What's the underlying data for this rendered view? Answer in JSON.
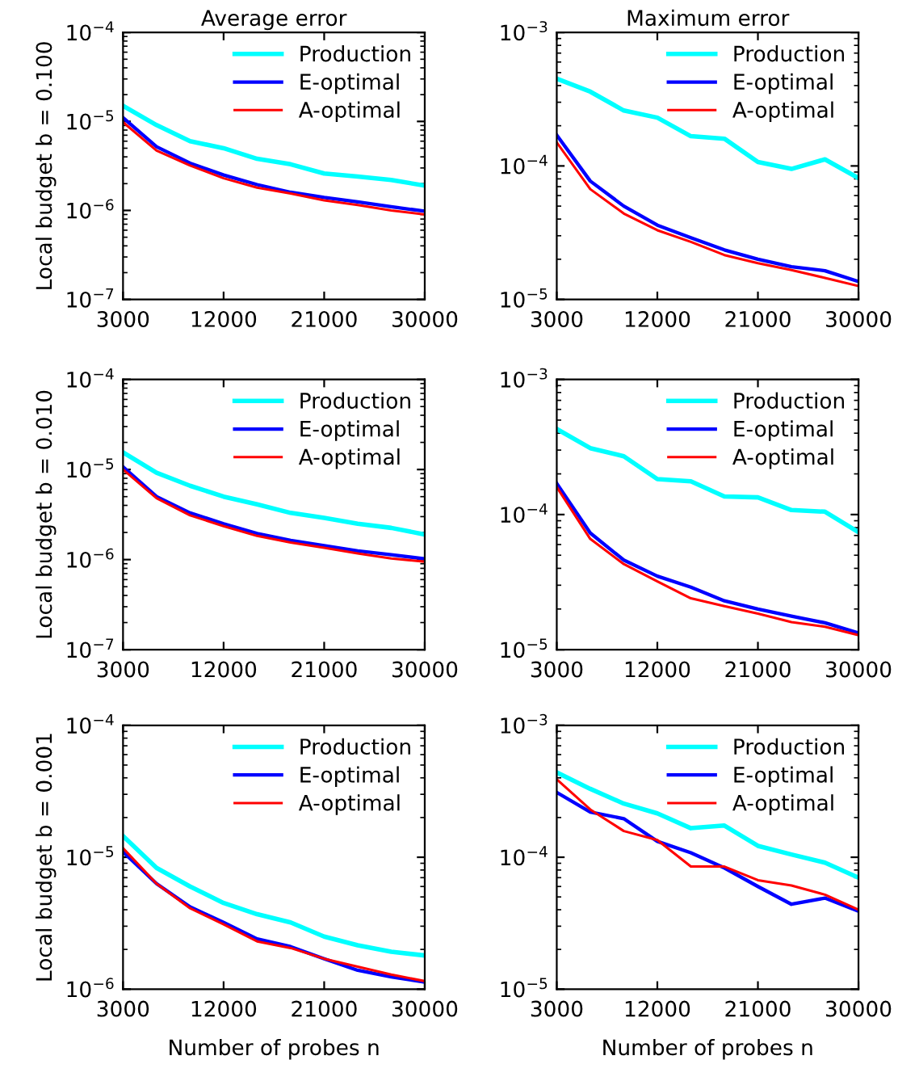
{
  "chart_data": [
    {
      "type": "line",
      "title": "Average error",
      "ylabel": "Local budget b = 0.100",
      "x": [
        3000,
        6000,
        9000,
        12000,
        15000,
        18000,
        21000,
        24000,
        27000,
        30000
      ],
      "log": "y",
      "xlim": [
        3000,
        30000
      ],
      "xticks": [
        3000,
        12000,
        21000,
        30000
      ],
      "ylim": [
        1e-07,
        0.0001
      ],
      "yticks": [
        {
          "value": 1e-07,
          "label": "10$^{−7}$"
        },
        {
          "value": 1e-06,
          "label": "10$^{−6}$"
        },
        {
          "value": 1e-05,
          "label": "10$^{−5}$"
        },
        {
          "value": 0.0001,
          "label": "10$^{−4}$"
        }
      ],
      "legend": "top right",
      "grid": false,
      "series": [
        {
          "name": "Production",
          "color": "#00ffff",
          "values": [
            1.5e-05,
            9.1e-06,
            6e-06,
            5e-06,
            3.8e-06,
            3.3e-06,
            2.6e-06,
            2.4e-06,
            2.2e-06,
            1.9e-06
          ]
        },
        {
          "name": "E-optimal",
          "color": "#0000ff",
          "values": [
            1.1e-05,
            5.2e-06,
            3.4e-06,
            2.5e-06,
            1.95e-06,
            1.6e-06,
            1.4e-06,
            1.25e-06,
            1.1e-06,
            9.8e-07
          ]
        },
        {
          "name": "A-optimal",
          "color": "#ff0000",
          "values": [
            9.8e-06,
            4.7e-06,
            3.2e-06,
            2.3e-06,
            1.8e-06,
            1.55e-06,
            1.3e-06,
            1.15e-06,
            1e-06,
            9e-07
          ]
        }
      ]
    },
    {
      "type": "line",
      "title": "Maximum error",
      "x": [
        3000,
        6000,
        9000,
        12000,
        15000,
        18000,
        21000,
        24000,
        27000,
        30000
      ],
      "log": "y",
      "xlim": [
        3000,
        30000
      ],
      "xticks": [
        3000,
        12000,
        21000,
        30000
      ],
      "ylim": [
        1e-05,
        0.001
      ],
      "yticks": [
        {
          "value": 1e-05,
          "label": "10$^{−5}$"
        },
        {
          "value": 0.0001,
          "label": "10$^{−4}$"
        },
        {
          "value": 0.001,
          "label": "10$^{−3}$"
        }
      ],
      "legend": "top right",
      "grid": false,
      "series": [
        {
          "name": "Production",
          "color": "#00ffff",
          "values": [
            0.00045,
            0.00036,
            0.00026,
            0.00023,
            0.000167,
            0.00016,
            0.000107,
            9.5e-05,
            0.000112,
            8.1e-05
          ]
        },
        {
          "name": "E-optimal",
          "color": "#0000ff",
          "values": [
            0.00017,
            7.7e-05,
            5e-05,
            3.6e-05,
            2.9e-05,
            2.35e-05,
            2e-05,
            1.76e-05,
            1.64e-05,
            1.36e-05
          ]
        },
        {
          "name": "A-optimal",
          "color": "#ff0000",
          "values": [
            0.00015,
            6.7e-05,
            4.4e-05,
            3.3e-05,
            2.7e-05,
            2.15e-05,
            1.87e-05,
            1.66e-05,
            1.45e-05,
            1.26e-05
          ]
        }
      ]
    },
    {
      "type": "line",
      "ylabel": "Local budget b = 0.010",
      "x": [
        3000,
        6000,
        9000,
        12000,
        15000,
        18000,
        21000,
        24000,
        27000,
        30000
      ],
      "log": "y",
      "xlim": [
        3000,
        30000
      ],
      "xticks": [
        3000,
        12000,
        21000,
        30000
      ],
      "ylim": [
        1e-07,
        0.0001
      ],
      "yticks": [
        {
          "value": 1e-07,
          "label": "10$^{−7}$"
        },
        {
          "value": 1e-06,
          "label": "10$^{−6}$"
        },
        {
          "value": 1e-05,
          "label": "10$^{−5}$"
        },
        {
          "value": 0.0001,
          "label": "10$^{−4}$"
        }
      ],
      "legend": "top right",
      "grid": false,
      "series": [
        {
          "name": "Production",
          "color": "#00ffff",
          "values": [
            1.55e-05,
            9.2e-06,
            6.6e-06,
            5e-06,
            4.1e-06,
            3.3e-06,
            2.9e-06,
            2.5e-06,
            2.25e-06,
            1.9e-06
          ]
        },
        {
          "name": "E-optimal",
          "color": "#0000ff",
          "values": [
            1.07e-05,
            5e-06,
            3.3e-06,
            2.5e-06,
            1.95e-06,
            1.63e-06,
            1.43e-06,
            1.25e-06,
            1.13e-06,
            1.02e-06
          ]
        },
        {
          "name": "A-optimal",
          "color": "#ff0000",
          "values": [
            1e-05,
            4.8e-06,
            3.1e-06,
            2.35e-06,
            1.83e-06,
            1.55e-06,
            1.35e-06,
            1.17e-06,
            1.03e-06,
            9.5e-07
          ]
        }
      ]
    },
    {
      "type": "line",
      "x": [
        3000,
        6000,
        9000,
        12000,
        15000,
        18000,
        21000,
        24000,
        27000,
        30000
      ],
      "log": "y",
      "xlim": [
        3000,
        30000
      ],
      "xticks": [
        3000,
        12000,
        21000,
        30000
      ],
      "ylim": [
        1e-05,
        0.001
      ],
      "yticks": [
        {
          "value": 1e-05,
          "label": "10$^{−5}$"
        },
        {
          "value": 0.0001,
          "label": "10$^{−4}$"
        },
        {
          "value": 0.001,
          "label": "10$^{−3}$"
        }
      ],
      "legend": "top right",
      "grid": false,
      "series": [
        {
          "name": "Production",
          "color": "#00ffff",
          "values": [
            0.00043,
            0.00031,
            0.00027,
            0.000183,
            0.000176,
            0.000136,
            0.000134,
            0.000108,
            0.000105,
            7.4e-05
          ]
        },
        {
          "name": "E-optimal",
          "color": "#0000ff",
          "values": [
            0.00017,
            7.3e-05,
            4.6e-05,
            3.5e-05,
            2.9e-05,
            2.3e-05,
            2e-05,
            1.77e-05,
            1.58e-05,
            1.33e-05
          ]
        },
        {
          "name": "A-optimal",
          "color": "#ff0000",
          "values": [
            0.00016,
            6.6e-05,
            4.3e-05,
            3.2e-05,
            2.4e-05,
            2.1e-05,
            1.85e-05,
            1.6e-05,
            1.48e-05,
            1.28e-05
          ]
        }
      ]
    },
    {
      "type": "line",
      "ylabel": "Local budget b = 0.001",
      "xlabel": "Number of probes n",
      "x": [
        3000,
        6000,
        9000,
        12000,
        15000,
        18000,
        21000,
        24000,
        27000,
        30000
      ],
      "log": "y",
      "xlim": [
        3000,
        30000
      ],
      "xticks": [
        3000,
        12000,
        21000,
        30000
      ],
      "ylim": [
        1e-06,
        0.0001
      ],
      "yticks": [
        {
          "value": 1e-06,
          "label": "10$^{−6}$"
        },
        {
          "value": 1e-05,
          "label": "10$^{−5}$"
        },
        {
          "value": 0.0001,
          "label": "10$^{−4}$"
        }
      ],
      "legend": "top right",
      "grid": false,
      "series": [
        {
          "name": "Production",
          "color": "#00ffff",
          "values": [
            1.45e-05,
            8.3e-06,
            6e-06,
            4.5e-06,
            3.7e-06,
            3.2e-06,
            2.5e-06,
            2.15e-06,
            1.92e-06,
            1.8e-06
          ]
        },
        {
          "name": "E-optimal",
          "color": "#0000ff",
          "values": [
            1.1e-05,
            6.3e-06,
            4.2e-06,
            3.2e-06,
            2.4e-06,
            2.1e-06,
            1.7e-06,
            1.39e-06,
            1.24e-06,
            1.13e-06
          ]
        },
        {
          "name": "A-optimal",
          "color": "#ff0000",
          "values": [
            1.17e-05,
            6.3e-06,
            4.1e-06,
            3.1e-06,
            2.3e-06,
            2.05e-06,
            1.7e-06,
            1.48e-06,
            1.29e-06,
            1.15e-06
          ]
        }
      ]
    },
    {
      "type": "line",
      "xlabel": "Number of probes n",
      "x": [
        3000,
        6000,
        9000,
        12000,
        15000,
        18000,
        21000,
        24000,
        27000,
        30000
      ],
      "log": "y",
      "xlim": [
        3000,
        30000
      ],
      "xticks": [
        3000,
        12000,
        21000,
        30000
      ],
      "ylim": [
        1e-05,
        0.001
      ],
      "yticks": [
        {
          "value": 1e-05,
          "label": "10$^{−5}$"
        },
        {
          "value": 0.0001,
          "label": "10$^{−4}$"
        },
        {
          "value": 0.001,
          "label": "10$^{−3}$"
        }
      ],
      "legend": "top right",
      "grid": false,
      "series": [
        {
          "name": "Production",
          "color": "#00ffff",
          "values": [
            0.00044,
            0.00033,
            0.000255,
            0.000215,
            0.000166,
            0.000174,
            0.000122,
            0.000105,
            9.1e-05,
            7e-05
          ]
        },
        {
          "name": "E-optimal",
          "color": "#0000ff",
          "values": [
            0.00031,
            0.00022,
            0.000196,
            0.000132,
            0.000108,
            8.3e-05,
            6e-05,
            4.4e-05,
            4.9e-05,
            3.9e-05
          ]
        },
        {
          "name": "A-optimal",
          "color": "#ff0000",
          "values": [
            0.00039,
            0.00023,
            0.000158,
            0.000135,
            8.5e-05,
            8.5e-05,
            6.7e-05,
            6.1e-05,
            5.2e-05,
            4e-05
          ]
        }
      ]
    }
  ]
}
